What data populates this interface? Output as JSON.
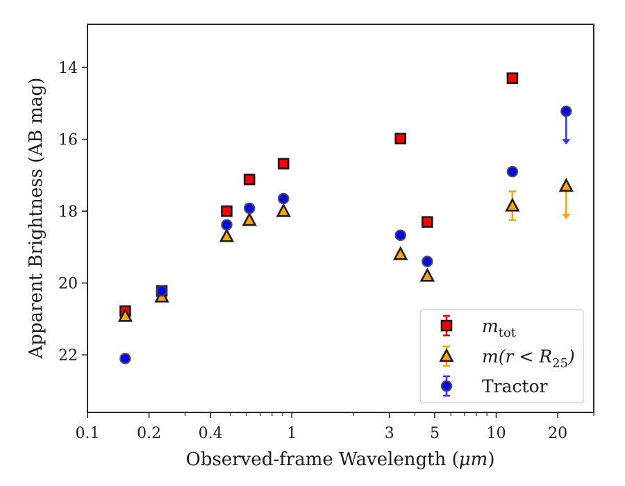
{
  "chart_data": {
    "type": "scatter",
    "xlabel_prefix": "Observed-frame Wavelength (",
    "xlabel_unit": "μm",
    "xlabel_suffix": ")",
    "ylabel": "Apparent Brightness (AB mag)",
    "x_scale": "log",
    "y_inverted": true,
    "xlim": [
      0.1,
      30
    ],
    "ylim": [
      23.6,
      12.8
    ],
    "x_ticks": [
      {
        "value": 0.1,
        "label": "0.1"
      },
      {
        "value": 0.2,
        "label": "0.2"
      },
      {
        "value": 0.4,
        "label": "0.4"
      },
      {
        "value": 1,
        "label": "1"
      },
      {
        "value": 3,
        "label": "3"
      },
      {
        "value": 5,
        "label": "5"
      },
      {
        "value": 10,
        "label": "10"
      },
      {
        "value": 20,
        "label": "20"
      }
    ],
    "x_minor_ticks": [
      0.3,
      0.5,
      0.6,
      0.7,
      0.8,
      0.9,
      2,
      4,
      6,
      7,
      8,
      9,
      30
    ],
    "y_ticks": [
      {
        "value": 14,
        "label": "14"
      },
      {
        "value": 16,
        "label": "16"
      },
      {
        "value": 18,
        "label": "18"
      },
      {
        "value": 20,
        "label": "20"
      },
      {
        "value": 22,
        "label": "22"
      }
    ],
    "grid": false,
    "legend_position": "lower-right",
    "legend": [
      {
        "series": "mtot",
        "text_main": "m",
        "text_sub": "tot"
      },
      {
        "series": "mr25",
        "text_main": "m(r < R",
        "text_sub": "25",
        "text_end": ")"
      },
      {
        "series": "tractor",
        "text_main": "Tractor"
      }
    ],
    "series": [
      {
        "id": "mtot",
        "marker": "square",
        "color": "#ff0000",
        "edge": "#1a1a1a",
        "points": [
          {
            "x": 0.153,
            "y": 20.78
          },
          {
            "x": 0.231,
            "y": 20.22
          },
          {
            "x": 0.48,
            "y": 18.0
          },
          {
            "x": 0.62,
            "y": 17.12
          },
          {
            "x": 0.91,
            "y": 16.68
          },
          {
            "x": 3.4,
            "y": 15.98
          },
          {
            "x": 4.6,
            "y": 18.3
          },
          {
            "x": 12.0,
            "y": 14.3
          }
        ]
      },
      {
        "id": "mr25",
        "marker": "triangle",
        "color": "#ffa500",
        "edge": "#1a1a1a",
        "points": [
          {
            "x": 0.153,
            "y": 20.92
          },
          {
            "x": 0.231,
            "y": 20.38
          },
          {
            "x": 0.48,
            "y": 18.7
          },
          {
            "x": 0.62,
            "y": 18.25
          },
          {
            "x": 0.91,
            "y": 18.0
          },
          {
            "x": 3.4,
            "y": 19.2
          },
          {
            "x": 4.6,
            "y": 19.8
          },
          {
            "x": 12.0,
            "y": 17.85,
            "err": 0.4
          },
          {
            "x": 22.0,
            "y": 17.3,
            "upper_limit": true
          }
        ]
      },
      {
        "id": "tractor",
        "marker": "circle",
        "color": "#0000ff",
        "edge": "#404040",
        "points": [
          {
            "x": 0.153,
            "y": 22.1
          },
          {
            "x": 0.231,
            "y": 20.22
          },
          {
            "x": 0.48,
            "y": 18.38
          },
          {
            "x": 0.62,
            "y": 17.92
          },
          {
            "x": 0.91,
            "y": 17.65
          },
          {
            "x": 3.4,
            "y": 18.67
          },
          {
            "x": 4.6,
            "y": 19.4
          },
          {
            "x": 12.0,
            "y": 16.9
          },
          {
            "x": 22.0,
            "y": 15.22,
            "upper_limit": true
          }
        ]
      }
    ]
  }
}
